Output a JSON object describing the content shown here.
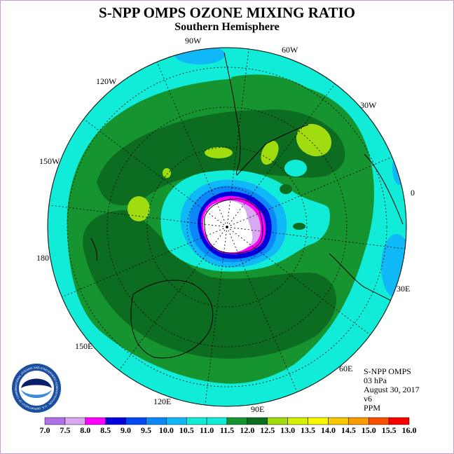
{
  "header": {
    "title": "S-NPP OMPS OZONE MIXING RATIO",
    "subtitle": "Southern Hemisphere"
  },
  "map": {
    "projection": "south polar stereographic",
    "meridian_labels": [
      "0",
      "30W",
      "60W",
      "90W",
      "120W",
      "150W",
      "180",
      "150E",
      "120E",
      "90E",
      "60E",
      "30E"
    ],
    "field": "ozone mixing ratio"
  },
  "info": {
    "instrument": "S-NPP OMPS",
    "level": "03 hPa",
    "date": "August 30, 2017",
    "version": "v6",
    "units": "PPM"
  },
  "logo": {
    "icon": "noaa-logo-icon",
    "text": "NOAA",
    "ring_text": "NATIONAL OCEANIC AND ATMOSPHERIC ADMINISTRATION · U.S. DEPARTMENT OF COMMERCE"
  },
  "colorbar": {
    "labels": [
      "7.0",
      "7.5",
      "8.0",
      "8.5",
      "9.0",
      "9.5",
      "10.0",
      "10.5",
      "11.0",
      "11.5",
      "12.0",
      "12.5",
      "13.0",
      "13.5",
      "14.0",
      "14.5",
      "15.0",
      "15.5",
      "16.0"
    ],
    "colors": [
      "#b070e8",
      "#d8a8f0",
      "#ff00ff",
      "#0000dc",
      "#0048f0",
      "#0c88f8",
      "#10b8f8",
      "#10ecd8",
      "#10ecd8",
      "#169430",
      "#0c6c20",
      "#a0dc10",
      "#d4f000",
      "#f8f800",
      "#f8c800",
      "#f89c00",
      "#f85000",
      "#f80000",
      "#804830"
    ]
  },
  "palette": {
    "cyan": "#10ecd8",
    "green": "#169430",
    "dark_green": "#0c6c20",
    "lime": "#a0dc10",
    "sky": "#10b8f8",
    "blue": "#0c88f8",
    "navy": "#0000dc",
    "magenta": "#ff00ff",
    "lilac": "#d8a8f0",
    "white": "#ffffff"
  }
}
